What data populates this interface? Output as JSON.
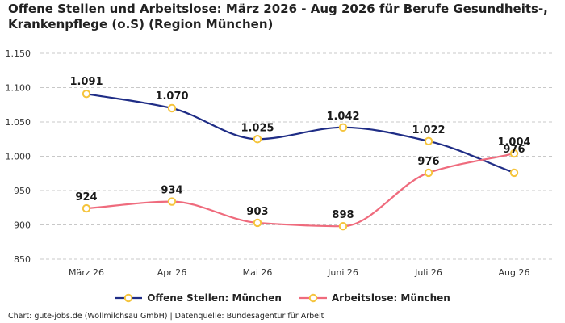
{
  "title": "Offene Stellen und Arbeitslose: März 2026 - Aug 2026 für Berufe Gesundheits-, Krankenpflege (o.S) (Region München)",
  "source": "Chart: gute-jobs.de (Wollmilchsau GmbH) | Datenquelle: Bundesagentur für Arbeit",
  "chart_data": {
    "type": "line",
    "categories": [
      "März 26",
      "Apr 26",
      "Mai 26",
      "Juni 26",
      "Juli 26",
      "Aug 26"
    ],
    "y_ticks": [
      "850",
      "900",
      "950",
      "1.000",
      "1.050",
      "1.100",
      "1.150"
    ],
    "y_tick_values": [
      850,
      900,
      950,
      1000,
      1050,
      1100,
      1150
    ],
    "ylim": [
      850,
      1150
    ],
    "grid": true,
    "legend_position": "bottom",
    "series": [
      {
        "name": "Offene Stellen: München",
        "color": "#1f2d86",
        "values": [
          1091,
          1070,
          1025,
          1042,
          1022,
          976
        ],
        "labels": [
          "1.091",
          "1.070",
          "1.025",
          "1.042",
          "1.022",
          "976"
        ]
      },
      {
        "name": "Arbeitslose: München",
        "color": "#ef6b7d",
        "values": [
          924,
          934,
          903,
          898,
          976,
          1004
        ],
        "labels": [
          "924",
          "934",
          "903",
          "898",
          "976",
          "1.004"
        ]
      }
    ],
    "marker_color": "#f5c43c"
  }
}
